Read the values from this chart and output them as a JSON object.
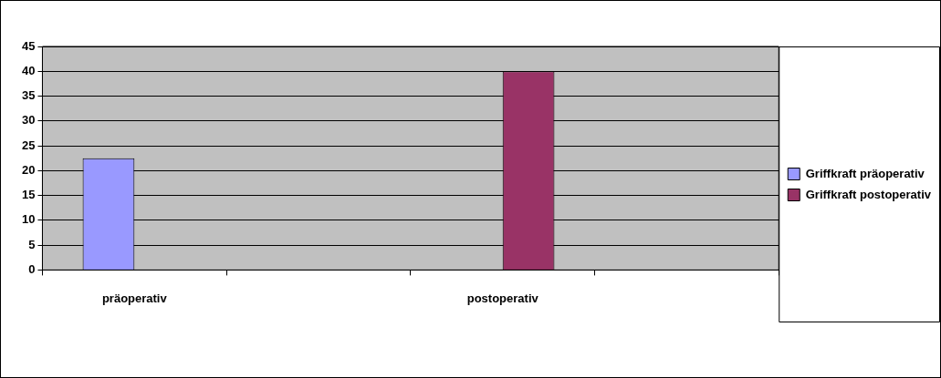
{
  "chart_data": {
    "type": "bar",
    "categories": [
      "präoperativ",
      null,
      "postoperativ",
      null
    ],
    "series": [
      {
        "name": "Griffkraft präoperativ",
        "color": "#9999ff",
        "values": [
          22.5,
          null,
          null,
          null
        ]
      },
      {
        "name": "Griffkraft postoperativ",
        "color": "#993366",
        "values": [
          null,
          null,
          40,
          null
        ]
      }
    ],
    "ylim": [
      0,
      45
    ],
    "yticks": [
      0,
      5,
      10,
      15,
      20,
      25,
      30,
      35,
      40,
      45
    ],
    "grid": "y",
    "legend": "right"
  }
}
